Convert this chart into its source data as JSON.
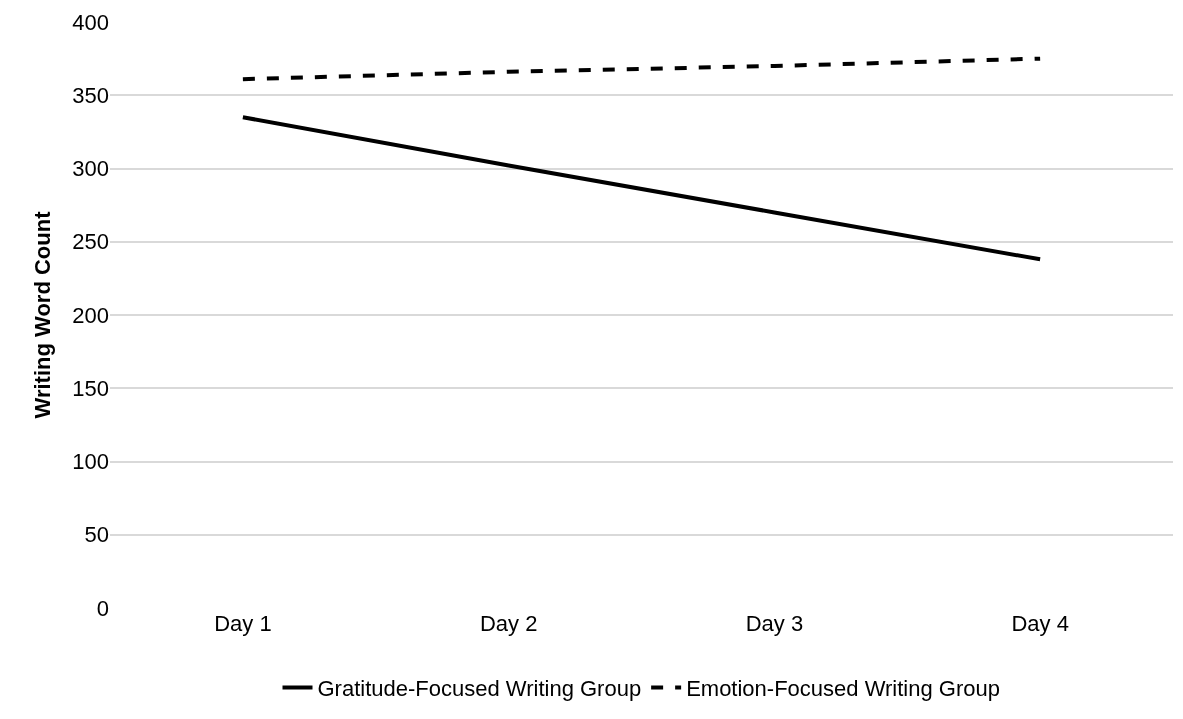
{
  "chart_data": {
    "type": "line",
    "ylabel": "Writing Word Count",
    "categories": [
      "Day 1",
      "Day 2",
      "Day 3",
      "Day 4"
    ],
    "series": [
      {
        "name": "Gratitude-Focused Writing Group",
        "color": "#000000",
        "values": [
          335,
          302,
          270,
          238
        ],
        "line_style": "solid"
      },
      {
        "name": "Emotion-Focused Writing Group",
        "color": "#000000",
        "values": [
          361,
          366,
          370,
          375
        ],
        "line_style": "dashed"
      }
    ],
    "ylim": [
      0,
      400
    ],
    "yticks": [
      0,
      50,
      100,
      150,
      200,
      250,
      300,
      350,
      400
    ],
    "grid": "y",
    "legend": "bottom",
    "marker": "none"
  }
}
